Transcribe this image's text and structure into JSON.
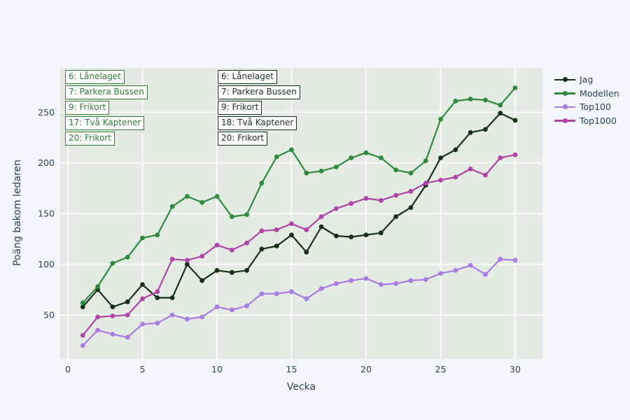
{
  "page": {
    "background_color": "#f3f6fb",
    "text_color": "#2a3f5f"
  },
  "chart_data": {
    "type": "line",
    "title": "",
    "xlabel": "Vecka",
    "ylabel": "Poäng bakom ledaren",
    "x_ticks": [
      0,
      5,
      10,
      15,
      20,
      25,
      30
    ],
    "y_ticks": [
      50,
      100,
      150,
      200,
      250
    ],
    "xlim": [
      -0.5,
      31.8
    ],
    "ylim": [
      6,
      294
    ],
    "grid": true,
    "grid_color": "#ffffff",
    "plot_background": "#e4ebe3",
    "legend_position": "right",
    "x": [
      1,
      2,
      3,
      4,
      5,
      6,
      7,
      8,
      9,
      10,
      11,
      12,
      13,
      14,
      15,
      16,
      17,
      18,
      19,
      20,
      21,
      22,
      23,
      24,
      25,
      26,
      27,
      28,
      29,
      30
    ],
    "series": [
      {
        "name": "Jag",
        "color": "#173118",
        "values": [
          58,
          75,
          58,
          63,
          80,
          67,
          67,
          100,
          84,
          94,
          92,
          94,
          115,
          118,
          129,
          112,
          137,
          128,
          127,
          129,
          131,
          147,
          156,
          178,
          205,
          213,
          230,
          233,
          249,
          242
        ]
      },
      {
        "name": "Modellen",
        "color": "#2e8b3d",
        "values": [
          62,
          78,
          101,
          107,
          126,
          129,
          157,
          167,
          161,
          167,
          147,
          149,
          180,
          206,
          213,
          190,
          192,
          196,
          205,
          210,
          205,
          193,
          190,
          202,
          243,
          261,
          263,
          262,
          257,
          274
        ]
      },
      {
        "name": "Top100",
        "color": "#a87ce3",
        "values": [
          20,
          35,
          31,
          28,
          41,
          42,
          50,
          46,
          48,
          58,
          55,
          59,
          71,
          71,
          73,
          66,
          76,
          81,
          84,
          86,
          80,
          81,
          84,
          85,
          91,
          94,
          99,
          90,
          105,
          104
        ]
      },
      {
        "name": "Top1000",
        "color": "#ae44a8",
        "values": [
          30,
          48,
          49,
          50,
          66,
          73,
          105,
          104,
          108,
          119,
          114,
          121,
          133,
          134,
          140,
          134,
          147,
          155,
          160,
          165,
          163,
          168,
          172,
          180,
          183,
          186,
          194,
          188,
          205,
          208
        ]
      }
    ],
    "annotations": [
      {
        "column": "green",
        "color": "#2e7d33",
        "items": [
          "6: Lånelaget",
          "7: Parkera Bussen",
          "9: Frikort",
          "17: Två Kaptener",
          "20: Frikort"
        ]
      },
      {
        "column": "black",
        "color": "#17301a",
        "items": [
          "6: Lånelaget",
          "7: Parkera Bussen",
          "9: Frikort",
          "18: Två Kaptener",
          "20: Frikort"
        ]
      }
    ]
  }
}
